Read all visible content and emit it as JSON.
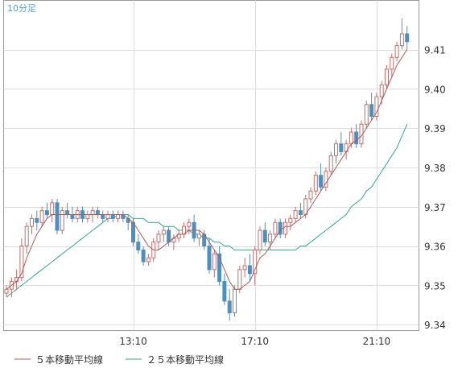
{
  "chart_data": {
    "type": "candlestick",
    "period_label": "10分足",
    "ylim": [
      9.3385,
      9.4225
    ],
    "y_ticks": [
      9.34,
      9.35,
      9.36,
      9.37,
      9.38,
      9.39,
      9.4,
      9.41
    ],
    "x_ticks": [
      {
        "label": "13:10",
        "index": 25
      },
      {
        "label": "17:10",
        "index": 49
      },
      {
        "label": "21:10",
        "index": 73
      }
    ],
    "grid": true,
    "legend_position": "bottom-left",
    "colors": {
      "up": "#c0706c",
      "down": "#4f8fc0",
      "ma5": "#b05a5a",
      "ma25": "#35a88c",
      "grid": "#dddddd",
      "frame": "#999999"
    },
    "series": [
      {
        "name": "５本移動平均線",
        "color": "#b05a5a"
      },
      {
        "name": "２５本移動平均線",
        "color": "#35a88c"
      }
    ],
    "candles": [
      [
        9.348,
        9.35,
        9.347,
        9.349
      ],
      [
        9.349,
        9.352,
        9.347,
        9.351
      ],
      [
        9.351,
        9.354,
        9.349,
        9.352
      ],
      [
        9.352,
        9.362,
        9.351,
        9.36
      ],
      [
        9.36,
        9.366,
        9.358,
        9.365
      ],
      [
        9.365,
        9.368,
        9.363,
        9.367
      ],
      [
        9.367,
        9.369,
        9.364,
        9.366
      ],
      [
        9.366,
        9.37,
        9.365,
        9.369
      ],
      [
        9.369,
        9.371,
        9.367,
        9.368
      ],
      [
        9.368,
        9.372,
        9.366,
        9.371
      ],
      [
        9.371,
        9.372,
        9.363,
        9.364
      ],
      [
        9.364,
        9.37,
        9.363,
        9.369
      ],
      [
        9.369,
        9.371,
        9.367,
        9.368
      ],
      [
        9.368,
        9.37,
        9.366,
        9.367
      ],
      [
        9.367,
        9.37,
        9.366,
        9.369
      ],
      [
        9.369,
        9.37,
        9.366,
        9.367
      ],
      [
        9.367,
        9.369,
        9.366,
        9.368
      ],
      [
        9.368,
        9.37,
        9.366,
        9.369
      ],
      [
        9.369,
        9.37,
        9.367,
        9.368
      ],
      [
        9.368,
        9.369,
        9.366,
        9.367
      ],
      [
        9.367,
        9.369,
        9.366,
        9.368
      ],
      [
        9.368,
        9.369,
        9.366,
        9.367
      ],
      [
        9.367,
        9.369,
        9.366,
        9.368
      ],
      [
        9.368,
        9.369,
        9.366,
        9.367
      ],
      [
        9.367,
        9.368,
        9.364,
        9.366
      ],
      [
        9.366,
        9.367,
        9.36,
        9.361
      ],
      [
        9.361,
        9.363,
        9.358,
        9.359
      ],
      [
        9.359,
        9.36,
        9.355,
        9.356
      ],
      [
        9.356,
        9.358,
        9.355,
        9.357
      ],
      [
        9.357,
        9.362,
        9.356,
        9.361
      ],
      [
        9.361,
        9.364,
        9.359,
        9.363
      ],
      [
        9.363,
        9.365,
        9.361,
        9.364
      ],
      [
        9.364,
        9.365,
        9.36,
        9.361
      ],
      [
        9.361,
        9.363,
        9.359,
        9.362
      ],
      [
        9.362,
        9.364,
        9.361,
        9.363
      ],
      [
        9.363,
        9.366,
        9.362,
        9.365
      ],
      [
        9.365,
        9.367,
        9.363,
        9.366
      ],
      [
        9.366,
        9.368,
        9.361,
        9.362
      ],
      [
        9.362,
        9.364,
        9.36,
        9.363
      ],
      [
        9.363,
        9.364,
        9.359,
        9.36
      ],
      [
        9.36,
        9.362,
        9.353,
        9.354
      ],
      [
        9.354,
        9.359,
        9.352,
        9.358
      ],
      [
        9.358,
        9.36,
        9.35,
        9.351
      ],
      [
        9.351,
        9.353,
        9.345,
        9.346
      ],
      [
        9.346,
        9.349,
        9.341,
        9.343
      ],
      [
        9.343,
        9.35,
        9.342,
        9.349
      ],
      [
        9.349,
        9.355,
        9.348,
        9.354
      ],
      [
        9.354,
        9.357,
        9.352,
        9.355
      ],
      [
        9.355,
        9.358,
        9.351,
        9.353
      ],
      [
        9.353,
        9.36,
        9.35,
        9.359
      ],
      [
        9.359,
        9.365,
        9.358,
        9.364
      ],
      [
        9.364,
        9.366,
        9.36,
        9.361
      ],
      [
        9.361,
        9.364,
        9.359,
        9.363
      ],
      [
        9.363,
        9.367,
        9.362,
        9.366
      ],
      [
        9.366,
        9.367,
        9.362,
        9.363
      ],
      [
        9.363,
        9.367,
        9.362,
        9.366
      ],
      [
        9.366,
        9.368,
        9.364,
        9.367
      ],
      [
        9.367,
        9.37,
        9.366,
        9.369
      ],
      [
        9.369,
        9.371,
        9.367,
        9.368
      ],
      [
        9.368,
        9.373,
        9.367,
        9.372
      ],
      [
        9.372,
        9.375,
        9.371,
        9.374
      ],
      [
        9.374,
        9.379,
        9.373,
        9.378
      ],
      [
        9.378,
        9.381,
        9.374,
        9.375
      ],
      [
        9.375,
        9.38,
        9.374,
        9.379
      ],
      [
        9.379,
        9.384,
        9.378,
        9.383
      ],
      [
        9.383,
        9.387,
        9.381,
        9.386
      ],
      [
        9.386,
        9.389,
        9.383,
        9.384
      ],
      [
        9.384,
        9.387,
        9.382,
        9.386
      ],
      [
        9.386,
        9.39,
        9.385,
        9.389
      ],
      [
        9.389,
        9.391,
        9.385,
        9.386
      ],
      [
        9.386,
        9.392,
        9.385,
        9.391
      ],
      [
        9.391,
        9.397,
        9.39,
        9.396
      ],
      [
        9.396,
        9.399,
        9.392,
        9.393
      ],
      [
        9.393,
        9.399,
        9.392,
        9.398
      ],
      [
        9.398,
        9.402,
        9.396,
        9.401
      ],
      [
        9.401,
        9.406,
        9.4,
        9.405
      ],
      [
        9.405,
        9.409,
        9.403,
        9.408
      ],
      [
        9.408,
        9.412,
        9.407,
        9.411
      ],
      [
        9.411,
        9.418,
        9.41,
        9.414
      ],
      [
        9.414,
        9.416,
        9.41,
        9.412
      ]
    ],
    "ma5": [
      9.349,
      9.35,
      9.351,
      9.353,
      9.357,
      9.36,
      9.363,
      9.365,
      9.367,
      9.368,
      9.368,
      9.368,
      9.368,
      9.368,
      9.368,
      9.368,
      9.368,
      9.368,
      9.368,
      9.368,
      9.368,
      9.368,
      9.368,
      9.368,
      9.367,
      9.366,
      9.364,
      9.362,
      9.36,
      9.359,
      9.359,
      9.36,
      9.361,
      9.362,
      9.363,
      9.363,
      9.364,
      9.364,
      9.364,
      9.363,
      9.361,
      9.359,
      9.357,
      9.354,
      9.351,
      9.349,
      9.349,
      9.35,
      9.351,
      9.354,
      9.357,
      9.358,
      9.36,
      9.362,
      9.364,
      9.365,
      9.365,
      9.366,
      9.367,
      9.368,
      9.37,
      9.372,
      9.374,
      9.376,
      9.378,
      9.38,
      9.382,
      9.384,
      9.386,
      9.387,
      9.388,
      9.39,
      9.392,
      9.394,
      9.397,
      9.4,
      9.403,
      9.406,
      9.408,
      9.41
    ],
    "ma25": [
      9.347,
      9.348,
      9.349,
      9.35,
      9.351,
      9.352,
      9.353,
      9.354,
      9.355,
      9.356,
      9.357,
      9.358,
      9.359,
      9.36,
      9.361,
      9.362,
      9.363,
      9.364,
      9.365,
      9.366,
      9.367,
      9.367,
      9.368,
      9.368,
      9.368,
      9.367,
      9.367,
      9.367,
      9.366,
      9.366,
      9.366,
      9.365,
      9.365,
      9.365,
      9.364,
      9.364,
      9.364,
      9.363,
      9.363,
      9.362,
      9.362,
      9.361,
      9.361,
      9.36,
      9.36,
      9.359,
      9.359,
      9.359,
      9.359,
      9.359,
      9.359,
      9.359,
      9.359,
      9.359,
      9.359,
      9.359,
      9.359,
      9.359,
      9.36,
      9.36,
      9.361,
      9.362,
      9.363,
      9.364,
      9.365,
      9.366,
      9.367,
      9.368,
      9.37,
      9.371,
      9.372,
      9.374,
      9.375,
      9.377,
      9.379,
      9.381,
      9.383,
      9.385,
      9.388,
      9.391
    ]
  }
}
